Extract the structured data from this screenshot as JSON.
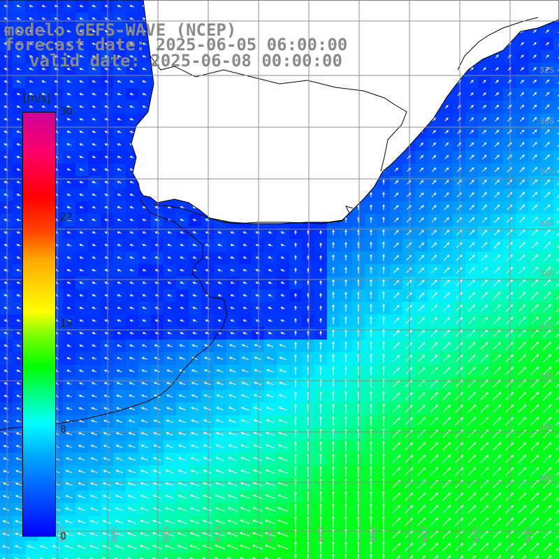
{
  "title": {
    "line1": "modelo GEFS-WAVE (NCEP)",
    "line2": "forecast date: 2025-06-05 06:00:00",
    "line3": "valid date: 2025-06-08 00:00:00"
  },
  "colorbar": {
    "unit": "[m/s]",
    "min": 0,
    "max": 30,
    "ticks": [
      "30",
      "22",
      "15",
      "8",
      "0"
    ],
    "tick_values": [
      30,
      22,
      15,
      8,
      0
    ]
  },
  "grid": {
    "lat_labels": [
      "32S",
      "33S",
      "34S",
      "35S",
      "36S",
      "37S",
      "38S",
      "39S",
      "40S"
    ],
    "lon_labels": [
      "60W",
      "59W",
      "58W",
      "57W",
      "56W",
      "55W",
      "54W",
      "53W",
      "52W",
      "51W"
    ]
  },
  "colors": {
    "land": "#ffffff",
    "coast": "#000000",
    "grid": "#8c8c8c",
    "title": "#8a8a8a",
    "arrow": "#ffffff"
  },
  "field": "wind speed at 10 m with wind direction arrows"
}
